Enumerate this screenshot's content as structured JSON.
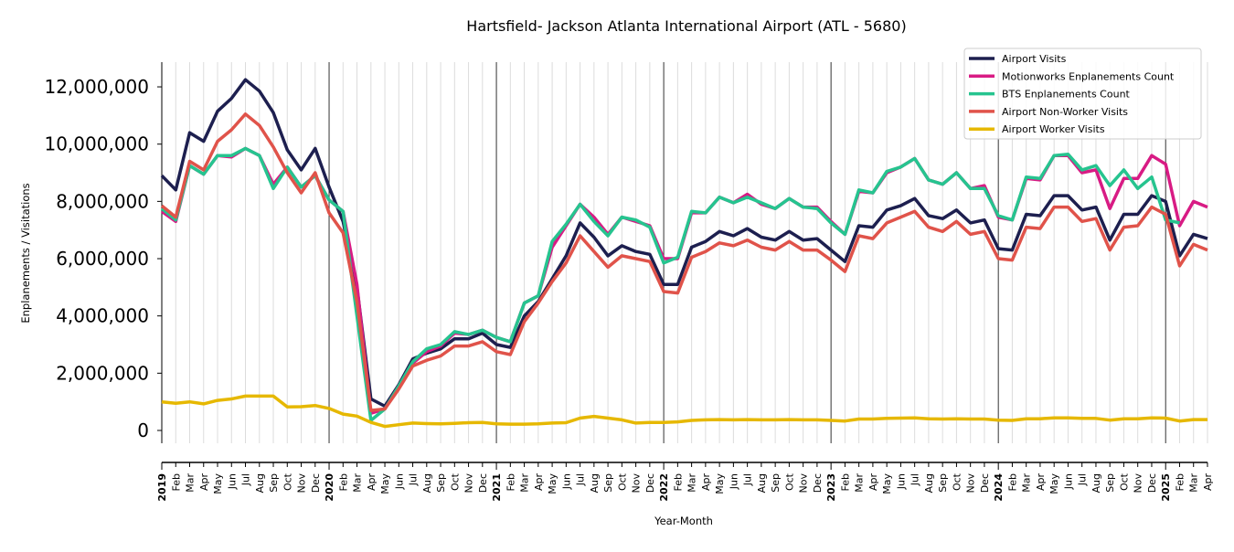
{
  "chart_data": {
    "type": "line",
    "title": "Hartsfield- Jackson Atlanta International Airport (ATL - 5680)",
    "xlabel": "Year-Month",
    "ylabel": "Enplanements / Visitations",
    "ylim": [
      -500000,
      12800000
    ],
    "yticks": [
      0,
      2000000,
      4000000,
      6000000,
      8000000,
      10000000,
      12000000
    ],
    "ytick_labels": [
      "0",
      "2,000,000",
      "4,000,000",
      "6,000,000",
      "8,000,000",
      "10,000,000",
      "12,000,000"
    ],
    "start": "2019-01",
    "month_labels": [
      "Feb",
      "Mar",
      "Apr",
      "May",
      "Jun",
      "Jul",
      "Aug",
      "Sep",
      "Oct",
      "Nov",
      "Dec"
    ],
    "year_labels": [
      "2019",
      "2020",
      "2021",
      "2022",
      "2023",
      "2024",
      "2025"
    ],
    "grid": "vertical monthly, darker at year starts",
    "legend_position": "top-right",
    "series": [
      {
        "name": "Airport Visits",
        "color": "#1d1f4f",
        "values": [
          8.9,
          8.4,
          10.4,
          10.1,
          11.15,
          11.6,
          12.25,
          11.85,
          11.1,
          9.8,
          9.1,
          9.85,
          8.5,
          7.3,
          5.0,
          1.1,
          0.85,
          1.6,
          2.5,
          2.7,
          2.85,
          3.2,
          3.2,
          3.4,
          3.0,
          2.9,
          4.0,
          4.5,
          5.3,
          6.1,
          7.25,
          6.75,
          6.1,
          6.45,
          6.25,
          6.15,
          5.1,
          5.1,
          6.4,
          6.6,
          6.95,
          6.8,
          7.05,
          6.75,
          6.65,
          6.95,
          6.65,
          6.7,
          6.3,
          5.9,
          7.15,
          7.1,
          7.7,
          7.85,
          8.1,
          7.5,
          7.4,
          7.7,
          7.25,
          7.35,
          6.35,
          6.3,
          7.55,
          7.5,
          8.2,
          8.2,
          7.7,
          7.8,
          6.65,
          7.55,
          7.55,
          8.2,
          8.0,
          6.1,
          6.85,
          6.7
        ]
      },
      {
        "name": "Motionworks Enplanements Count",
        "color": "#d81b84",
        "values": [
          7.65,
          7.3,
          9.25,
          8.95,
          9.6,
          9.55,
          9.85,
          9.6,
          8.6,
          9.2,
          8.5,
          8.9,
          8.05,
          7.65,
          5.1,
          0.6,
          0.75,
          1.55,
          2.35,
          2.75,
          2.95,
          3.4,
          3.35,
          3.5,
          3.25,
          3.1,
          4.45,
          4.7,
          6.4,
          7.15,
          7.9,
          7.45,
          6.85,
          7.45,
          7.3,
          7.15,
          6.0,
          6.0,
          7.6,
          7.6,
          8.15,
          7.95,
          8.25,
          7.9,
          7.75,
          8.1,
          7.8,
          7.8,
          7.3,
          6.85,
          8.35,
          8.3,
          9.0,
          9.2,
          9.5,
          8.75,
          8.6,
          9.0,
          8.45,
          8.55,
          7.45,
          7.35,
          8.8,
          8.75,
          9.6,
          9.6,
          9.0,
          9.1,
          7.75,
          8.8,
          8.8,
          9.6,
          9.3,
          7.15,
          8.0,
          7.8
        ]
      },
      {
        "name": "BTS Enplanements Count",
        "color": "#26c48f",
        "values": [
          7.75,
          7.35,
          9.25,
          8.95,
          9.6,
          9.6,
          9.85,
          9.6,
          8.45,
          9.2,
          8.5,
          8.9,
          8.05,
          7.65,
          4.0,
          0.35,
          0.75,
          1.55,
          2.4,
          2.85,
          3.0,
          3.45,
          3.35,
          3.5,
          3.25,
          3.1,
          4.45,
          4.7,
          6.6,
          7.2,
          7.9,
          7.3,
          6.8,
          7.45,
          7.35,
          7.1,
          5.85,
          6.05,
          7.65,
          7.6,
          8.15,
          7.95,
          8.15,
          7.95,
          7.75,
          8.1,
          7.8,
          7.75,
          7.25,
          6.85,
          8.4,
          8.3,
          9.05,
          9.2,
          9.5,
          8.75,
          8.6,
          9.0,
          8.45,
          8.45,
          7.5,
          7.35,
          8.85,
          8.8,
          9.6,
          9.65,
          9.1,
          9.25,
          8.55,
          9.1,
          8.45,
          8.85,
          7.35,
          7.25,
          null,
          null
        ]
      },
      {
        "name": "Airport Non-Worker Visits",
        "color": "#e0534a",
        "values": [
          7.85,
          7.45,
          9.4,
          9.1,
          10.1,
          10.5,
          11.05,
          10.65,
          9.9,
          9.0,
          8.3,
          9.0,
          7.6,
          6.9,
          4.5,
          0.7,
          0.75,
          1.45,
          2.25,
          2.45,
          2.6,
          2.95,
          2.95,
          3.1,
          2.75,
          2.65,
          3.8,
          4.45,
          5.2,
          5.85,
          6.8,
          6.25,
          5.7,
          6.1,
          6.0,
          5.9,
          4.85,
          4.8,
          6.05,
          6.25,
          6.55,
          6.45,
          6.65,
          6.4,
          6.3,
          6.6,
          6.3,
          6.3,
          5.95,
          5.55,
          6.8,
          6.7,
          7.25,
          7.45,
          7.65,
          7.1,
          6.95,
          7.3,
          6.85,
          6.95,
          6.0,
          5.95,
          7.1,
          7.05,
          7.8,
          7.8,
          7.3,
          7.4,
          6.3,
          7.1,
          7.15,
          7.8,
          7.55,
          5.75,
          6.5,
          6.3
        ]
      },
      {
        "name": "Airport Worker Visits",
        "color": "#e6b800",
        "values": [
          1.0,
          0.95,
          1.0,
          0.93,
          1.05,
          1.1,
          1.2,
          1.2,
          1.2,
          0.82,
          0.83,
          0.87,
          0.77,
          0.57,
          0.5,
          0.28,
          0.14,
          0.2,
          0.26,
          0.24,
          0.23,
          0.25,
          0.27,
          0.28,
          0.23,
          0.22,
          0.22,
          0.23,
          0.26,
          0.27,
          0.43,
          0.49,
          0.43,
          0.37,
          0.26,
          0.28,
          0.28,
          0.3,
          0.35,
          0.37,
          0.38,
          0.37,
          0.38,
          0.37,
          0.37,
          0.38,
          0.37,
          0.37,
          0.35,
          0.33,
          0.4,
          0.4,
          0.42,
          0.43,
          0.44,
          0.41,
          0.4,
          0.41,
          0.4,
          0.4,
          0.36,
          0.35,
          0.41,
          0.41,
          0.44,
          0.44,
          0.42,
          0.42,
          0.36,
          0.41,
          0.41,
          0.44,
          0.43,
          0.33,
          0.38,
          0.38
        ]
      }
    ],
    "value_unit": "millions"
  }
}
